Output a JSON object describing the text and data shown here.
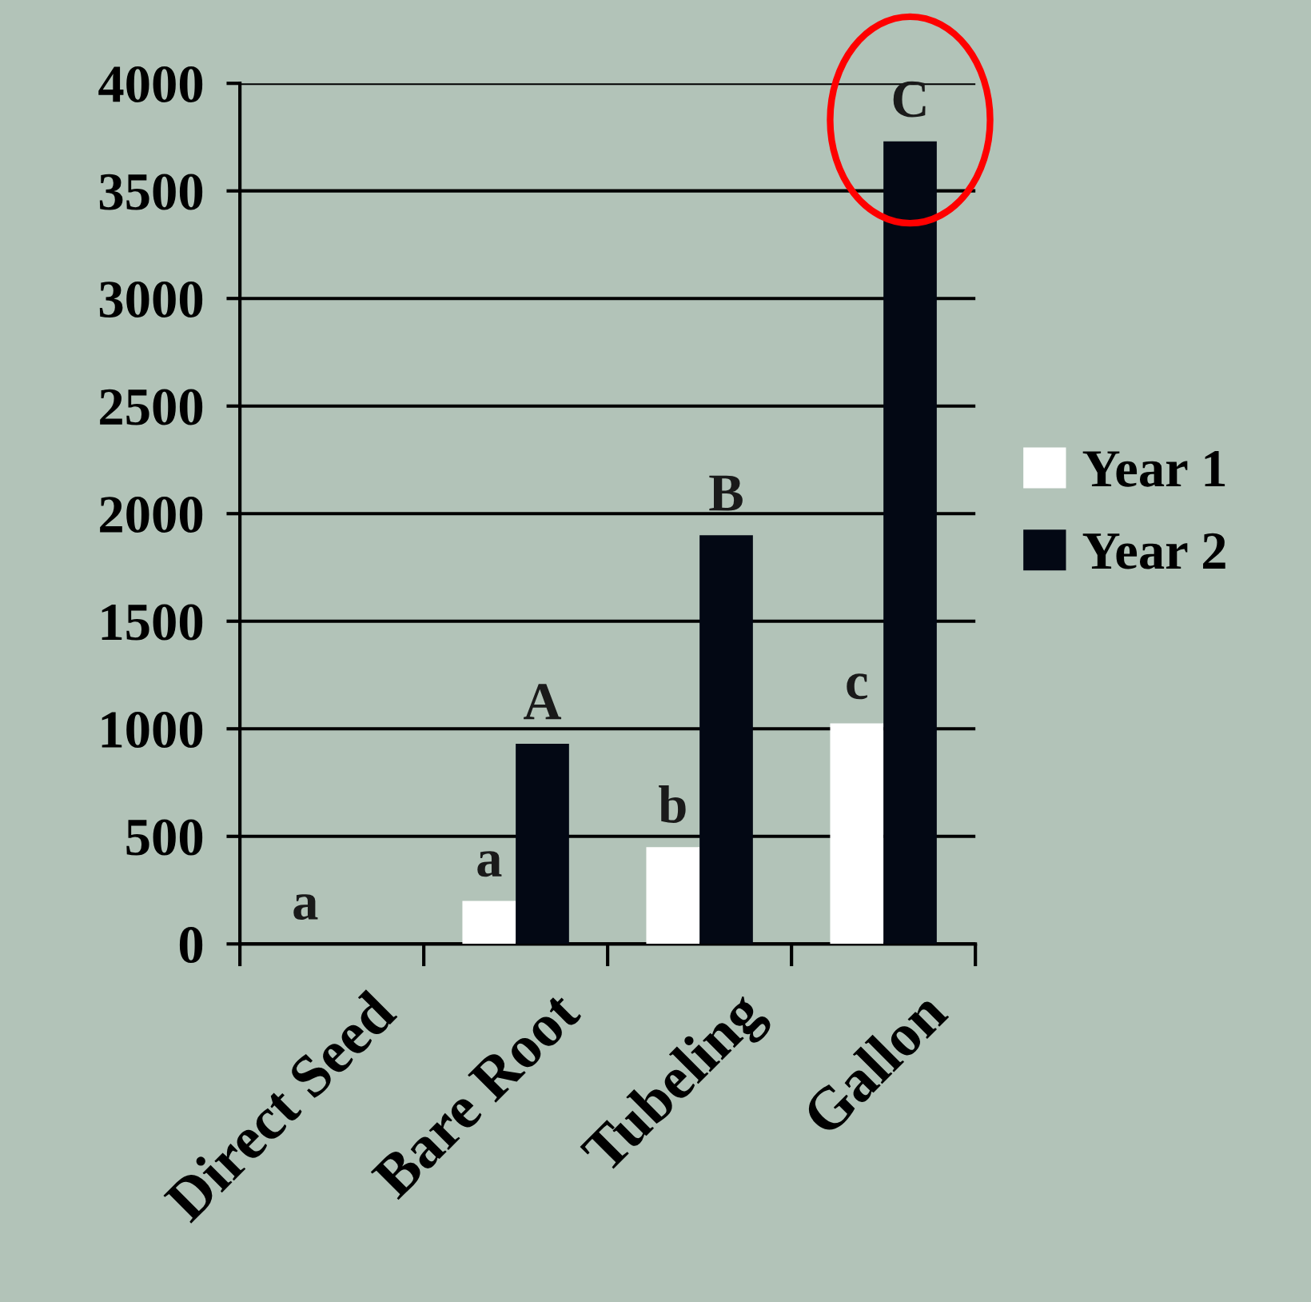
{
  "chart_data": {
    "type": "bar",
    "categories": [
      "Direct Seed",
      "Bare Root",
      "Tubeling",
      "Gallon"
    ],
    "series": [
      {
        "name": "Year 1",
        "color": "#ffffff",
        "values": [
          0,
          200,
          450,
          1025
        ],
        "value_labels": [
          "a",
          "a",
          "b",
          "c"
        ]
      },
      {
        "name": "Year 2",
        "color": "#030814",
        "values": [
          0,
          930,
          1900,
          3730
        ],
        "value_labels": [
          null,
          "A",
          "B",
          "C"
        ]
      }
    ],
    "ylim": [
      0,
      4000
    ],
    "yticks": [
      0,
      500,
      1000,
      1500,
      2000,
      2500,
      3000,
      3500,
      4000
    ],
    "grid": "y",
    "legend": "right"
  }
}
